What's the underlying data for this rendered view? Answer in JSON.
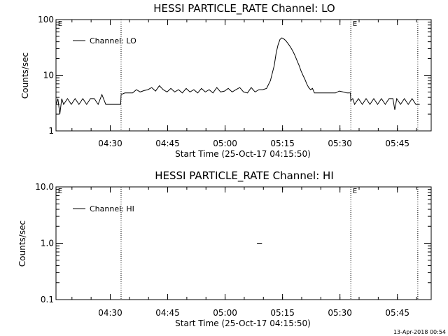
{
  "timestamp": "13-Apr-2018 00:54",
  "chart_data": [
    {
      "type": "line",
      "title": "HESSI PARTICLE_RATE Channel: LO",
      "xlabel": "Start Time (25-Oct-17 04:15:50)",
      "ylabel": "Counts/sec",
      "yscale": "log",
      "ylim": [
        1,
        100
      ],
      "yticks": [
        1,
        10,
        100
      ],
      "ytick_labels": [
        "1",
        "10",
        "100"
      ],
      "xlim_min": [
        0,
        98
      ],
      "xticks_min": [
        14.17,
        29.17,
        44.17,
        59.17,
        74.17,
        89.17
      ],
      "xtick_labels": [
        "04:30",
        "04:45",
        "05:00",
        "05:15",
        "05:30",
        "05:45"
      ],
      "vlines_min": [
        17,
        77,
        94.5
      ],
      "markers": [
        {
          "x_min": 0.5,
          "label": "E"
        },
        {
          "x_min": 77.5,
          "label": "E"
        }
      ],
      "series": [
        {
          "name": "Channel: LO",
          "x": [
            0,
            0.5,
            1,
            1.5,
            2,
            3,
            4,
            5,
            6,
            7,
            8,
            9,
            10,
            11,
            12,
            13,
            14,
            15,
            16,
            16.9,
            17,
            18,
            19,
            20,
            21,
            22,
            23,
            24,
            25,
            26,
            27,
            28,
            29,
            30,
            31,
            32,
            33,
            34,
            35,
            36,
            37,
            38,
            39,
            40,
            41,
            42,
            43,
            44,
            45,
            46,
            47,
            48,
            49,
            50,
            51,
            52,
            53,
            54,
            55,
            56,
            57,
            57.5,
            58,
            58.5,
            59,
            59.5,
            60,
            60.5,
            61,
            61.5,
            62,
            62.5,
            63,
            63.5,
            64,
            64.5,
            65,
            65.5,
            66,
            66.5,
            67,
            67.5,
            68,
            69,
            70,
            71,
            72,
            73,
            74,
            75,
            76,
            76.9,
            77,
            77.5,
            78,
            79,
            80,
            81,
            82,
            83,
            84,
            85,
            86,
            87,
            88,
            88.5,
            89,
            90,
            91,
            92,
            93,
            94,
            95
          ],
          "y": [
            3,
            3.8,
            2,
            3.8,
            3,
            3.8,
            3,
            3.8,
            3,
            3.8,
            3,
            3.8,
            3.8,
            3,
            4.5,
            3,
            3,
            3,
            3,
            3,
            4.5,
            4.8,
            4.8,
            4.8,
            5.5,
            5,
            5.3,
            5.5,
            6,
            5.2,
            6.5,
            5.5,
            5,
            5.8,
            5,
            5.5,
            4.8,
            5.8,
            5,
            5.5,
            4.8,
            5.8,
            5,
            5.5,
            4.8,
            6,
            5,
            5.2,
            5.8,
            5,
            5.5,
            6,
            5,
            4.8,
            6,
            5,
            5.5,
            5.5,
            5.8,
            8,
            15,
            25,
            35,
            44,
            47,
            45,
            42,
            38,
            34,
            30,
            26,
            22,
            18,
            15,
            12,
            10,
            8.5,
            7,
            6,
            5.5,
            5.8,
            4.8,
            4.8,
            4.8,
            4.8,
            4.8,
            4.8,
            4.8,
            5.2,
            5,
            4.8,
            4.8,
            3.5,
            3.8,
            3,
            3.8,
            3,
            3.8,
            3,
            3.8,
            3,
            3.8,
            3,
            3.8,
            3.8,
            2.4,
            3.8,
            3,
            3.8,
            3,
            3.8,
            3,
            3
          ]
        }
      ]
    },
    {
      "type": "line",
      "title": "HESSI PARTICLE_RATE Channel: HI",
      "xlabel": "Start Time (25-Oct-17 04:15:50)",
      "ylabel": "Counts/sec",
      "yscale": "log",
      "ylim": [
        0.1,
        10
      ],
      "yticks": [
        0.1,
        1,
        10
      ],
      "ytick_labels": [
        "0.1",
        "1.0",
        "10.0"
      ],
      "xlim_min": [
        0,
        98
      ],
      "xticks_min": [
        14.17,
        29.17,
        44.17,
        59.17,
        74.17,
        89.17
      ],
      "xtick_labels": [
        "04:30",
        "04:45",
        "05:00",
        "05:15",
        "05:30",
        "05:45"
      ],
      "vlines_min": [
        17,
        77,
        94.5
      ],
      "markers": [
        {
          "x_min": 0.5,
          "label": "E"
        },
        {
          "x_min": 77.5,
          "label": "E"
        }
      ],
      "series": [
        {
          "name": "Channel: HI",
          "x": [
            52.5,
            53.8
          ],
          "y": [
            1,
            1
          ]
        }
      ]
    }
  ]
}
